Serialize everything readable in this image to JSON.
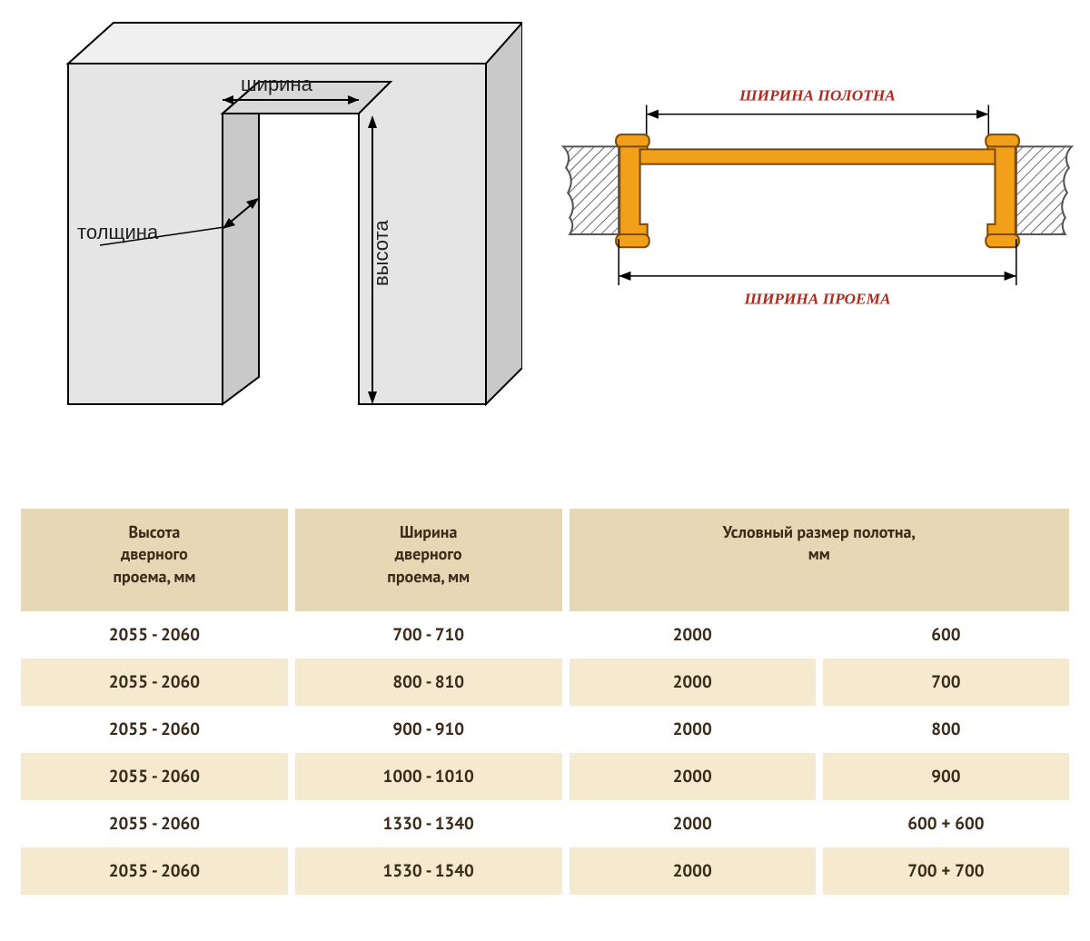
{
  "wall_diagram": {
    "label_width": "ширина",
    "label_height": "высота",
    "label_thickness": "толщина",
    "colors": {
      "wall_fill": "#e5e5e5",
      "wall_edge_dark": "#bdbdbd",
      "line": "#000000"
    }
  },
  "cross_section": {
    "label_top": "ШИРИНА ПОЛОТНА",
    "label_bottom": "ШИРИНА ПРОЕМА",
    "colors": {
      "frame_fill": "#f2a019",
      "frame_stroke": "#7a4a0a",
      "wall_fill": "#ffffff",
      "hatch": "#6b6b6b",
      "dim_line": "#000000",
      "label_color": "#b02a1f"
    }
  },
  "table": {
    "header_bg": "#e6d8b5",
    "row_alt_bg": "#f5e9cf",
    "text_color": "#3a2b1a",
    "columns": [
      "Высота\nдверного\nпроема, мм",
      "Ширина\nдверного\nпроема, мм",
      "Условный размер полотна,\nмм"
    ],
    "rows": [
      {
        "height": "2055 - 2060",
        "width": "700 - 710",
        "leaf_h": "2000",
        "leaf_w": "600"
      },
      {
        "height": "2055 - 2060",
        "width": "800 - 810",
        "leaf_h": "2000",
        "leaf_w": "700"
      },
      {
        "height": "2055 - 2060",
        "width": "900 - 910",
        "leaf_h": "2000",
        "leaf_w": "800"
      },
      {
        "height": "2055 - 2060",
        "width": "1000 - 1010",
        "leaf_h": "2000",
        "leaf_w": "900"
      },
      {
        "height": "2055 - 2060",
        "width": "1330 - 1340",
        "leaf_h": "2000",
        "leaf_w": "600 + 600"
      },
      {
        "height": "2055 - 2060",
        "width": "1530 - 1540",
        "leaf_h": "2000",
        "leaf_w": "700 + 700"
      }
    ]
  }
}
